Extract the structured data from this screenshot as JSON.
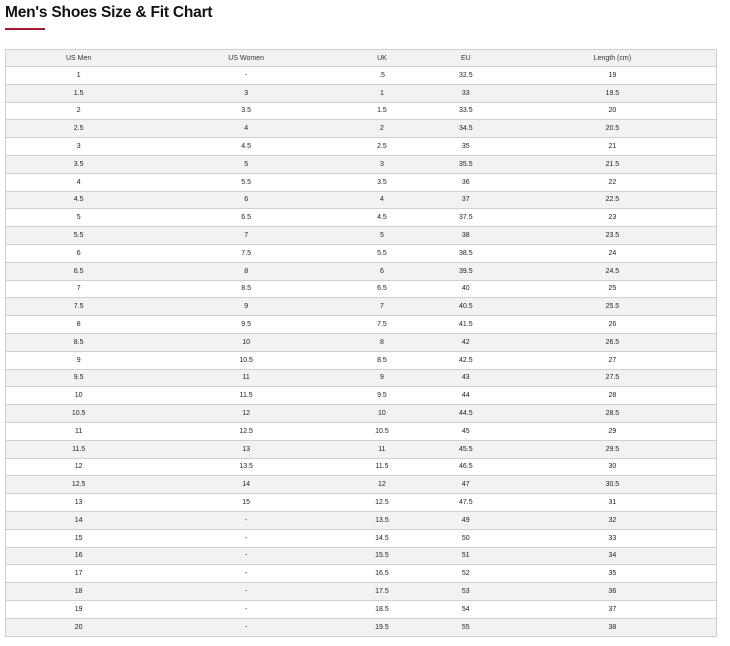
{
  "title": "Men's Shoes Size & Fit Chart",
  "accent_color": "#a6192e",
  "table": {
    "headers": [
      "US Men",
      "US Women",
      "UK",
      "EU",
      "Length (cm)"
    ],
    "rows": [
      [
        "1",
        "-",
        ".5",
        "32.5",
        "19"
      ],
      [
        "1.5",
        "3",
        "1",
        "33",
        "19.5"
      ],
      [
        "2",
        "3.5",
        "1.5",
        "33.5",
        "20"
      ],
      [
        "2.5",
        "4",
        "2",
        "34.5",
        "20.5"
      ],
      [
        "3",
        "4.5",
        "2.5",
        "35",
        "21"
      ],
      [
        "3.5",
        "5",
        "3",
        "35.5",
        "21.5"
      ],
      [
        "4",
        "5.5",
        "3.5",
        "36",
        "22"
      ],
      [
        "4.5",
        "6",
        "4",
        "37",
        "22.5"
      ],
      [
        "5",
        "6.5",
        "4.5",
        "37.5",
        "23"
      ],
      [
        "5.5",
        "7",
        "5",
        "38",
        "23.5"
      ],
      [
        "6",
        "7.5",
        "5.5",
        "38.5",
        "24"
      ],
      [
        "6.5",
        "8",
        "6",
        "39.5",
        "24.5"
      ],
      [
        "7",
        "8.5",
        "6.5",
        "40",
        "25"
      ],
      [
        "7.5",
        "9",
        "7",
        "40.5",
        "25.5"
      ],
      [
        "8",
        "9.5",
        "7.5",
        "41.5",
        "26"
      ],
      [
        "8.5",
        "10",
        "8",
        "42",
        "26.5"
      ],
      [
        "9",
        "10.5",
        "8.5",
        "42.5",
        "27"
      ],
      [
        "9.5",
        "11",
        "9",
        "43",
        "27.5"
      ],
      [
        "10",
        "11.5",
        "9.5",
        "44",
        "28"
      ],
      [
        "10.5",
        "12",
        "10",
        "44.5",
        "28.5"
      ],
      [
        "11",
        "12.5",
        "10.5",
        "45",
        "29"
      ],
      [
        "11.5",
        "13",
        "11",
        "45.5",
        "29.5"
      ],
      [
        "12",
        "13.5",
        "11.5",
        "46.5",
        "30"
      ],
      [
        "12.5",
        "14",
        "12",
        "47",
        "30.5"
      ],
      [
        "13",
        "15",
        "12.5",
        "47.5",
        "31"
      ],
      [
        "14",
        "-",
        "13.5",
        "49",
        "32"
      ],
      [
        "15",
        "-",
        "14.5",
        "50",
        "33"
      ],
      [
        "16",
        "-",
        "15.5",
        "51",
        "34"
      ],
      [
        "17",
        "-",
        "16.5",
        "52",
        "35"
      ],
      [
        "18",
        "-",
        "17.5",
        "53",
        "36"
      ],
      [
        "19",
        "-",
        "18.5",
        "54",
        "37"
      ],
      [
        "20",
        "-",
        "19.5",
        "55",
        "38"
      ]
    ]
  }
}
